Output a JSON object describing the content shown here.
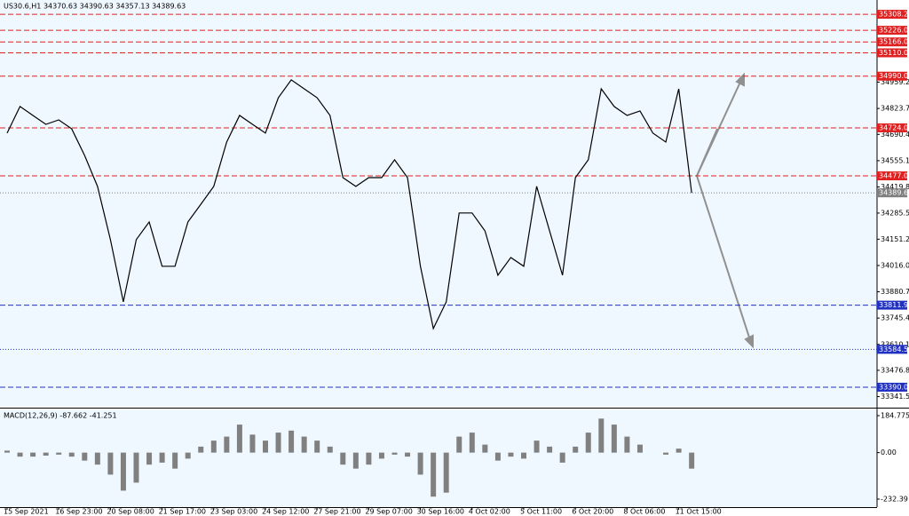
{
  "chart_data": [
    {
      "type": "line",
      "title": "US30.6,H1  34370.63 34390.63 34357.13 34389.63",
      "color": "#000000",
      "categories": [
        "15 Sep 2021",
        null,
        null,
        null,
        "16 Sep 23:00",
        null,
        null,
        null,
        "20 Sep 08:00",
        null,
        null,
        null,
        "21 Sep 17:00",
        null,
        null,
        null,
        "23 Sep 03:00",
        null,
        null,
        null,
        "24 Sep 12:00",
        null,
        null,
        null,
        "27 Sep 21:00",
        null,
        null,
        null,
        "29 Sep 07:00",
        null,
        null,
        null,
        "30 Sep 16:00",
        null,
        null,
        null,
        "4 Oct 02:00",
        null,
        null,
        null,
        "5 Oct 11:00",
        null,
        null,
        null,
        "6 Oct 20:00",
        null,
        null,
        null,
        "8 Oct 06:00",
        null,
        null,
        null,
        "11 Oct 15:00",
        null
      ],
      "values": [
        34697,
        34834,
        34788,
        34742,
        34765,
        34719,
        34582,
        34423,
        34149,
        33829,
        34149,
        34240,
        34012,
        34012,
        34240,
        34331,
        34423,
        34651,
        34788,
        34742,
        34697,
        34879,
        34971,
        34925,
        34879,
        34788,
        34468,
        34423,
        34468,
        34468,
        34560,
        34468,
        34012,
        33692,
        33829,
        34286,
        34286,
        34194,
        33966,
        34057,
        34012,
        34423,
        34194,
        33966,
        34468,
        34560,
        34925,
        34834,
        34788,
        34811,
        34697,
        34651,
        34925,
        34389.63
      ],
      "ylim": [
        33303,
        35336
      ],
      "yticks": [
        {
          "value": 34959.2,
          "label": "34959.20"
        },
        {
          "value": 34823.7,
          "label": "34823.70"
        },
        {
          "value": 34690.45,
          "label": "34690.45"
        },
        {
          "value": 34555.15,
          "label": "34555.15"
        },
        {
          "value": 34419.85,
          "label": "34419.85"
        },
        {
          "value": 34285.55,
          "label": "34285.55"
        },
        {
          "value": 34151.25,
          "label": "34151.25"
        },
        {
          "value": 34016,
          "label": "34016.00"
        },
        {
          "value": 33880.7,
          "label": "33880.70"
        },
        {
          "value": 33745.45,
          "label": "33745.45"
        },
        {
          "value": 33610.1,
          "label": "33610.10"
        },
        {
          "value": 33476.85,
          "label": "33476.85"
        },
        {
          "value": 33341.55,
          "label": "33341.55"
        }
      ],
      "levels": [
        {
          "value": 35308.23,
          "color": "#e02020",
          "dash": "dashed"
        },
        {
          "value": 35226,
          "label": "35226.00",
          "color": "#e02020",
          "dash": "dashed"
        },
        {
          "value": 35166,
          "label": "35166.00",
          "color": "#e02020",
          "dash": "dashed"
        },
        {
          "value": 35110,
          "label": "35110.00",
          "color": "#e02020",
          "dash": "dashed"
        },
        {
          "value": 34990,
          "label": "34990.00",
          "color": "#e02020",
          "dash": "dashed"
        },
        {
          "value": 34724,
          "label": "34724.00",
          "color": "#e02020",
          "dash": "dashed"
        },
        {
          "value": 34477,
          "label": "34477.00",
          "color": "#e02020",
          "dash": "dashed"
        },
        {
          "value": 34389.63,
          "color": "#808080",
          "dash": "dotted"
        },
        {
          "value": 33811.92,
          "color": "#2030c0",
          "dash": "dashed"
        },
        {
          "value": 33584.59,
          "color": "#2030c0",
          "dash": "dotted"
        },
        {
          "value": 33390,
          "label": "33390.00",
          "color": "#2030c0",
          "dash": "dashed"
        }
      ]
    },
    {
      "type": "bar",
      "title": "MACD(12,26,9) -87.662 -41.251",
      "color": "#808080",
      "values": [
        10,
        -20,
        -20,
        -15,
        -10,
        -20,
        -40,
        -60,
        -110,
        -190,
        -150,
        -60,
        -50,
        -80,
        -30,
        30,
        60,
        80,
        140,
        90,
        60,
        100,
        110,
        80,
        60,
        30,
        -60,
        -80,
        -60,
        -30,
        -10,
        -20,
        -110,
        -220,
        -200,
        80,
        100,
        40,
        -40,
        -20,
        -30,
        60,
        30,
        -50,
        30,
        100,
        170,
        140,
        80,
        40,
        0,
        -10,
        20,
        -80
      ],
      "ylim": [
        -267.9,
        211.4
      ],
      "yticks": [
        184.775,
        {
          "value": 0,
          "label": "0.00"
        },
        -232.39
      ]
    }
  ]
}
